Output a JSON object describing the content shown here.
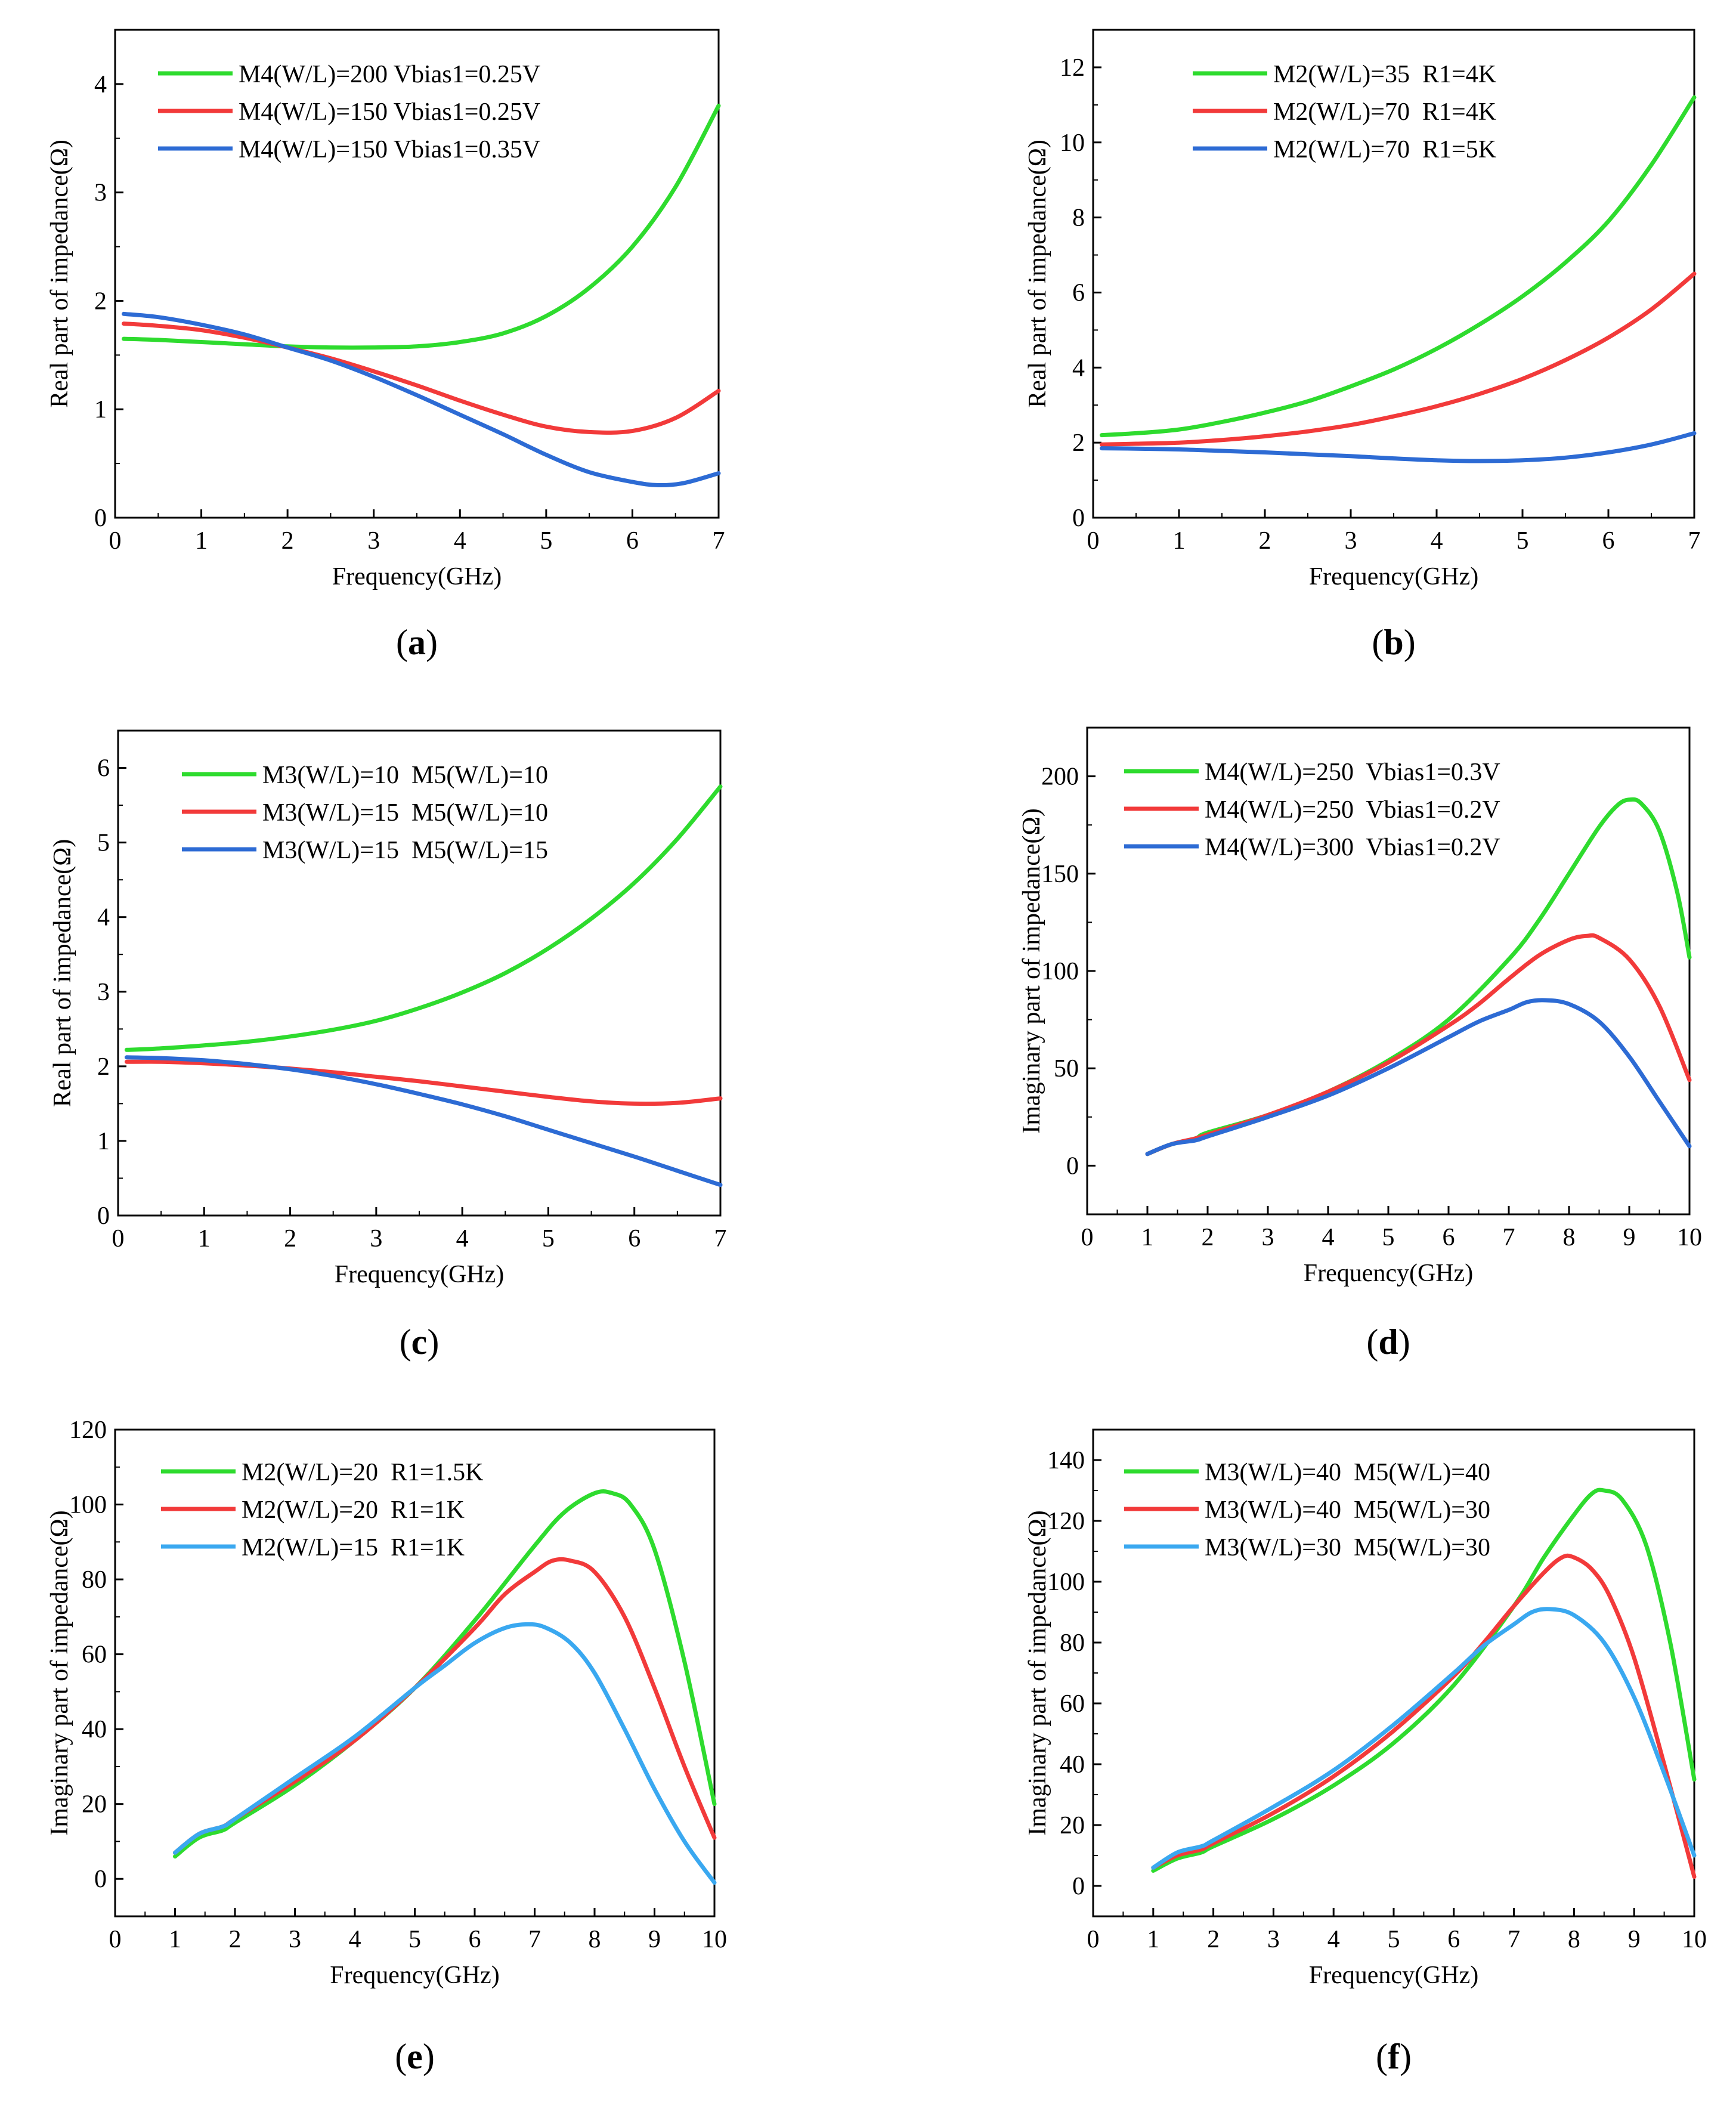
{
  "chart_data": [
    {
      "type": "line",
      "panel": "a",
      "caption": {
        "open": "(",
        "letter": "a",
        "close": ")"
      },
      "xlabel": "Frequency(GHz)",
      "ylabel": "Real part of impedance(Ω)",
      "xlim": [
        0,
        7.0
      ],
      "ylim": [
        0,
        4.5
      ],
      "xticks": [
        "0",
        "1",
        "2",
        "3",
        "4",
        "5",
        "6",
        "7"
      ],
      "yticks": [
        "0",
        "1",
        "2",
        "3",
        "4"
      ],
      "legend_position": "top-left",
      "series": [
        {
          "name": "M4(W/L)=200 Vbias1=0.25V",
          "color": "#2edb2e",
          "x": [
            0.1,
            0.5,
            1,
            1.5,
            2,
            2.5,
            3,
            3.5,
            4,
            4.5,
            5,
            5.5,
            6,
            6.5,
            7
          ],
          "y": [
            1.65,
            1.64,
            1.62,
            1.6,
            1.58,
            1.57,
            1.57,
            1.58,
            1.62,
            1.7,
            1.86,
            2.12,
            2.5,
            3.05,
            3.8
          ]
        },
        {
          "name": "M4(W/L)=150 Vbias1=0.25V",
          "color": "#f23a3a",
          "x": [
            0.1,
            0.5,
            1,
            1.5,
            2,
            2.5,
            3,
            3.5,
            4,
            4.5,
            5,
            5.5,
            6,
            6.5,
            7
          ],
          "y": [
            1.79,
            1.77,
            1.73,
            1.66,
            1.57,
            1.47,
            1.35,
            1.22,
            1.08,
            0.95,
            0.84,
            0.79,
            0.8,
            0.92,
            1.17
          ]
        },
        {
          "name": "M4(W/L)=150 Vbias1=0.35V",
          "color": "#2d6bd4",
          "x": [
            0.1,
            0.5,
            1,
            1.5,
            2,
            2.5,
            3,
            3.5,
            4,
            4.5,
            5,
            5.5,
            6,
            6.3,
            6.6,
            7
          ],
          "y": [
            1.88,
            1.85,
            1.78,
            1.69,
            1.57,
            1.45,
            1.3,
            1.13,
            0.95,
            0.77,
            0.58,
            0.42,
            0.33,
            0.3,
            0.32,
            0.41
          ]
        }
      ]
    },
    {
      "type": "line",
      "panel": "b",
      "caption": {
        "open": "(",
        "letter": "b",
        "close": ")"
      },
      "xlabel": "Frequency(GHz)",
      "ylabel": "Real part of impedance(Ω)",
      "xlim": [
        0,
        7.0
      ],
      "ylim": [
        0,
        13.0
      ],
      "xticks": [
        "0",
        "1",
        "2",
        "3",
        "4",
        "5",
        "6",
        "7"
      ],
      "yticks": [
        "0",
        "2",
        "4",
        "6",
        "8",
        "10",
        "12"
      ],
      "legend_position": "top-center",
      "series": [
        {
          "name": "M2(W/L)=35  R1=4K",
          "color": "#2edb2e",
          "x": [
            0.1,
            0.5,
            1,
            1.5,
            2,
            2.5,
            3,
            3.5,
            4,
            4.5,
            5,
            5.5,
            6,
            6.5,
            7
          ],
          "y": [
            2.2,
            2.25,
            2.35,
            2.55,
            2.8,
            3.1,
            3.5,
            3.95,
            4.5,
            5.15,
            5.9,
            6.8,
            7.9,
            9.4,
            11.2
          ]
        },
        {
          "name": "M2(W/L)=70  R1=4K",
          "color": "#f23a3a",
          "x": [
            0.1,
            0.5,
            1,
            1.5,
            2,
            2.5,
            3,
            3.5,
            4,
            4.5,
            5,
            5.5,
            6,
            6.5,
            7
          ],
          "y": [
            1.95,
            1.97,
            2.0,
            2.07,
            2.17,
            2.3,
            2.47,
            2.7,
            2.97,
            3.3,
            3.7,
            4.2,
            4.8,
            5.55,
            6.5
          ]
        },
        {
          "name": "M2(W/L)=70  R1=5K",
          "color": "#2d6bd4",
          "x": [
            0.1,
            0.5,
            1,
            1.5,
            2,
            2.5,
            3,
            3.5,
            4,
            4.5,
            5,
            5.5,
            6,
            6.5,
            7
          ],
          "y": [
            1.85,
            1.84,
            1.82,
            1.78,
            1.74,
            1.69,
            1.64,
            1.58,
            1.53,
            1.51,
            1.53,
            1.6,
            1.74,
            1.95,
            2.25
          ]
        }
      ]
    },
    {
      "type": "line",
      "panel": "c",
      "caption": {
        "open": "(",
        "letter": "c",
        "close": ")"
      },
      "xlabel": "Frequency(GHz)",
      "ylabel": "Real part of impedance(Ω)",
      "xlim": [
        0,
        7.0
      ],
      "ylim": [
        0,
        6.5
      ],
      "xticks": [
        "0",
        "1",
        "2",
        "3",
        "4",
        "5",
        "6",
        "7"
      ],
      "yticks": [
        "0",
        "1",
        "2",
        "3",
        "4",
        "5",
        "6"
      ],
      "legend_position": "top-left",
      "series": [
        {
          "name": "M3(W/L)=10  M5(W/L)=10",
          "color": "#2edb2e",
          "x": [
            0.1,
            0.5,
            1,
            1.5,
            2,
            2.5,
            3,
            3.5,
            4,
            4.5,
            5,
            5.5,
            6,
            6.5,
            7
          ],
          "y": [
            2.22,
            2.24,
            2.28,
            2.33,
            2.4,
            2.49,
            2.61,
            2.78,
            2.99,
            3.25,
            3.58,
            3.98,
            4.46,
            5.05,
            5.75
          ]
        },
        {
          "name": "M3(W/L)=15  M5(W/L)=10",
          "color": "#f23a3a",
          "x": [
            0.1,
            0.5,
            1,
            1.5,
            2,
            2.5,
            3,
            3.5,
            4,
            4.5,
            5,
            5.5,
            6,
            6.5,
            7
          ],
          "y": [
            2.06,
            2.06,
            2.04,
            2.01,
            1.97,
            1.92,
            1.86,
            1.8,
            1.73,
            1.66,
            1.59,
            1.53,
            1.5,
            1.51,
            1.57
          ]
        },
        {
          "name": "M3(W/L)=15  M5(W/L)=15",
          "color": "#2d6bd4",
          "x": [
            0.1,
            0.5,
            1,
            1.5,
            2,
            2.5,
            3,
            3.5,
            4,
            4.5,
            5,
            5.5,
            6,
            6.5,
            7
          ],
          "y": [
            2.12,
            2.11,
            2.08,
            2.03,
            1.96,
            1.87,
            1.76,
            1.63,
            1.49,
            1.33,
            1.15,
            0.97,
            0.79,
            0.6,
            0.41
          ]
        }
      ]
    },
    {
      "type": "line",
      "panel": "d",
      "caption": {
        "open": "(",
        "letter": "d",
        "close": ")"
      },
      "xlabel": "Frequency(GHz)",
      "ylabel": "Imaginary part of impedance(Ω)",
      "xlim": [
        0,
        10.0
      ],
      "ylim": [
        -25,
        225
      ],
      "xticks": [
        "0",
        "1",
        "2",
        "3",
        "4",
        "5",
        "6",
        "7",
        "8",
        "9",
        "10"
      ],
      "yticks": [
        "0",
        "50",
        "100",
        "150",
        "200"
      ],
      "legend_position": "top-left",
      "series": [
        {
          "name": "M4(W/L)=250  Vbias1=0.3V",
          "color": "#2edb2e",
          "x": [
            1,
            1.4,
            1.8,
            2,
            3,
            4,
            5,
            6,
            7,
            7.5,
            8,
            8.5,
            8.8,
            9,
            9.2,
            9.5,
            9.8,
            10
          ],
          "y": [
            6,
            11,
            14,
            17,
            26,
            38,
            54,
            75,
            106,
            126,
            150,
            174,
            185,
            188,
            186,
            172,
            140,
            107
          ]
        },
        {
          "name": "M4(W/L)=250  Vbias1=0.2V",
          "color": "#f23a3a",
          "x": [
            1,
            1.4,
            1.8,
            2,
            3,
            4,
            5,
            6,
            6.5,
            7,
            7.5,
            8,
            8.3,
            8.5,
            9,
            9.5,
            10
          ],
          "y": [
            6,
            11,
            14,
            16,
            26,
            38,
            53,
            72,
            83,
            96,
            108,
            116,
            118,
            117,
            106,
            82,
            44
          ]
        },
        {
          "name": "M4(W/L)=300  Vbias1=0.2V",
          "color": "#2d6bd4",
          "x": [
            1,
            1.4,
            1.8,
            2,
            3,
            4,
            5,
            6,
            6.5,
            7,
            7.3,
            7.6,
            8,
            8.5,
            9,
            9.5,
            10
          ],
          "y": [
            6,
            11,
            13,
            15,
            25,
            36,
            50,
            66,
            74,
            80,
            84,
            85,
            83,
            74,
            56,
            33,
            10
          ]
        }
      ]
    },
    {
      "type": "line",
      "panel": "e",
      "caption": {
        "open": "(",
        "letter": "e",
        "close": ")"
      },
      "xlabel": "Frequency(GHz)",
      "ylabel": "Imaginary part of impedance(Ω)",
      "xlim": [
        0,
        10.0
      ],
      "ylim": [
        -10,
        120
      ],
      "xticks": [
        "0",
        "1",
        "2",
        "3",
        "4",
        "5",
        "6",
        "7",
        "8",
        "9",
        "10"
      ],
      "yticks": [
        "0",
        "20",
        "40",
        "60",
        "80",
        "100",
        "120"
      ],
      "legend_position": "top-left",
      "series": [
        {
          "name": "M2(W/L)=20  R1=1.5K",
          "color": "#2edb2e",
          "x": [
            1,
            1.4,
            1.8,
            2,
            3,
            4,
            5,
            6,
            7,
            7.5,
            8,
            8.3,
            8.6,
            9,
            9.5,
            10
          ],
          "y": [
            6,
            11,
            13,
            15,
            25,
            37,
            51,
            69,
            89,
            98,
            103,
            103,
            100,
            88,
            58,
            20
          ]
        },
        {
          "name": "M2(W/L)=20  R1=1K",
          "color": "#f23a3a",
          "x": [
            1,
            1.4,
            1.8,
            2,
            3,
            4,
            5,
            6,
            6.5,
            7,
            7.3,
            7.6,
            8,
            8.5,
            9,
            9.5,
            10
          ],
          "y": [
            7,
            12,
            14,
            16,
            26,
            37,
            51,
            67,
            76,
            82,
            85,
            85,
            82,
            70,
            51,
            30,
            11
          ]
        },
        {
          "name": "M2(W/L)=15  R1=1K",
          "color": "#3aa8f0",
          "x": [
            1,
            1.4,
            1.8,
            2,
            3,
            4,
            5,
            5.5,
            6,
            6.5,
            6.9,
            7.2,
            7.6,
            8,
            8.5,
            9,
            9.5,
            10
          ],
          "y": [
            7,
            12,
            14,
            16,
            27,
            38,
            51,
            57,
            63,
            67,
            68,
            67,
            63,
            55,
            40,
            24,
            10,
            -1
          ]
        }
      ]
    },
    {
      "type": "line",
      "panel": "f",
      "caption": {
        "open": "(",
        "letter": "f",
        "close": ")"
      },
      "xlabel": "Frequency(GHz)",
      "ylabel": "Imaginary part of impedance(Ω)",
      "xlim": [
        0,
        10.0
      ],
      "ylim": [
        -10,
        150
      ],
      "xticks": [
        "0",
        "1",
        "2",
        "3",
        "4",
        "5",
        "6",
        "7",
        "8",
        "9",
        "10"
      ],
      "yticks": [
        "0",
        "20",
        "40",
        "60",
        "80",
        "100",
        "120",
        "140"
      ],
      "legend_position": "top-left",
      "series": [
        {
          "name": "M3(W/L)=40  M5(W/L)=40",
          "color": "#2edb2e",
          "x": [
            1,
            1.4,
            1.8,
            2,
            3,
            4,
            5,
            6,
            7,
            7.5,
            8,
            8.3,
            8.5,
            8.8,
            9.2,
            9.6,
            10
          ],
          "y": [
            5,
            9,
            11,
            13,
            22,
            33,
            47,
            66,
            92,
            108,
            122,
            129,
            130,
            127,
            112,
            80,
            35
          ]
        },
        {
          "name": "M3(W/L)=40  M5(W/L)=30",
          "color": "#f23a3a",
          "x": [
            1,
            1.4,
            1.8,
            2,
            3,
            4,
            5,
            6,
            6.5,
            7,
            7.5,
            7.8,
            8,
            8.3,
            8.6,
            9,
            9.5,
            10
          ],
          "y": [
            6,
            10,
            12,
            14,
            24,
            36,
            51,
            69,
            80,
            92,
            103,
            108,
            108,
            104,
            95,
            75,
            40,
            3
          ]
        },
        {
          "name": "M3(W/L)=30  M5(W/L)=30",
          "color": "#3aa8f0",
          "x": [
            1,
            1.4,
            1.8,
            2,
            3,
            4,
            5,
            6,
            6.5,
            7,
            7.3,
            7.6,
            8,
            8.5,
            9,
            9.5,
            10
          ],
          "y": [
            6,
            11,
            13,
            15,
            26,
            38,
            53,
            70,
            79,
            86,
            90,
            91,
            89,
            80,
            62,
            37,
            10
          ]
        }
      ]
    }
  ]
}
